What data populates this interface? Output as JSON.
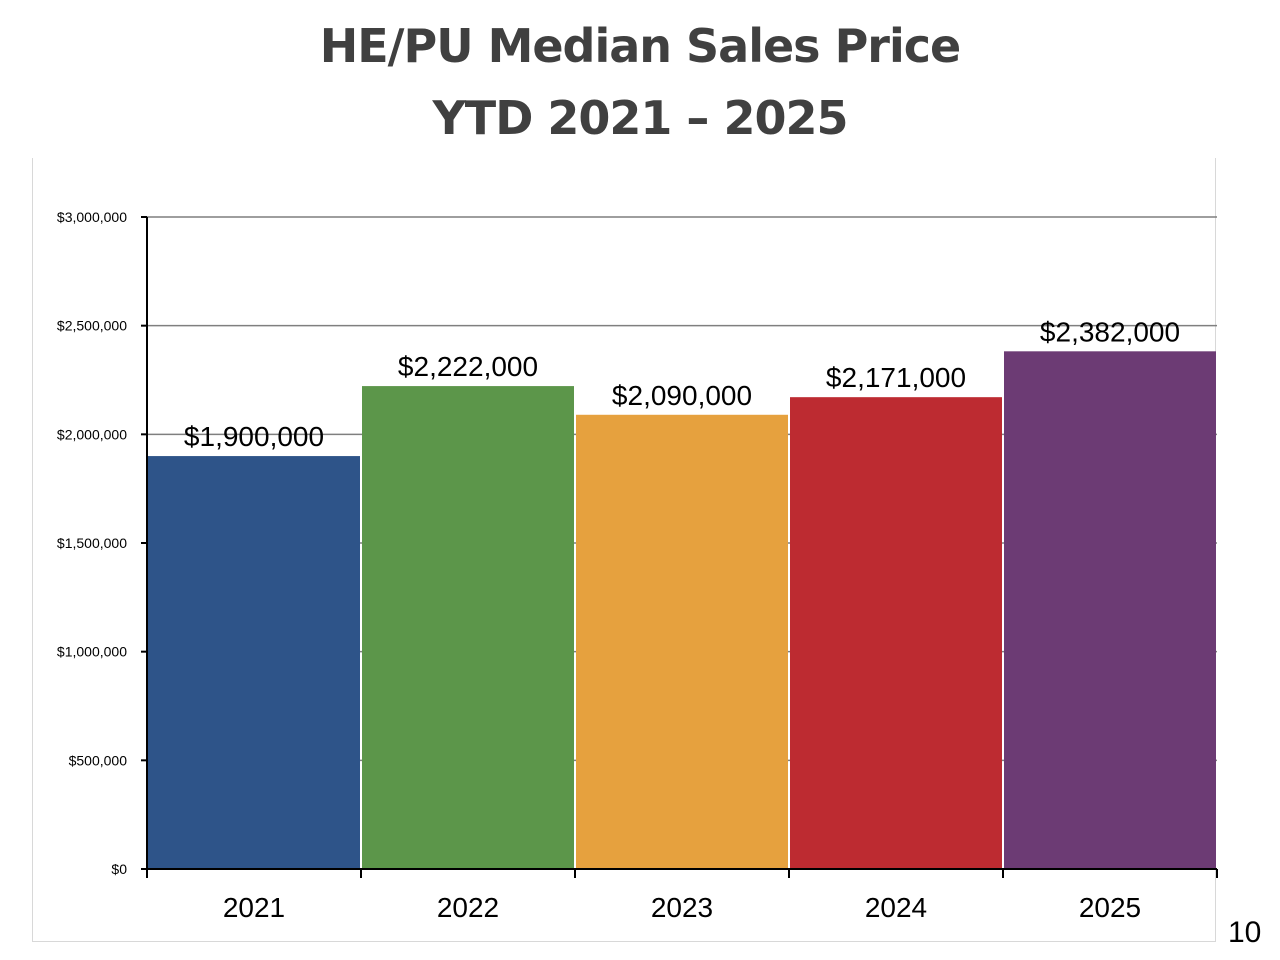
{
  "slide": {
    "title_line1": "HE/PU Median Sales Price",
    "title_line2": "YTD 2021 – 2025",
    "page_number": "10"
  },
  "chart_data": {
    "type": "bar",
    "categories": [
      "2021",
      "2022",
      "2023",
      "2024",
      "2025"
    ],
    "values": [
      1900000,
      2222000,
      2090000,
      2171000,
      2382000
    ],
    "value_labels": [
      "$1,900,000",
      "$2,222,000",
      "$2,090,000",
      "$2,171,000",
      "$2,382,000"
    ],
    "colors": [
      "#2e5489",
      "#5c964a",
      "#e6a13e",
      "#bd2b31",
      "#6c3b74"
    ],
    "ylim": [
      0,
      3000000
    ],
    "yticks": [
      0,
      500000,
      1000000,
      1500000,
      2000000,
      2500000,
      3000000
    ],
    "ytick_labels": [
      "$0",
      "$500,000",
      "$1,000,000",
      "$1,500,000",
      "$2,000,000",
      "$2,500,000",
      "$3,000,000"
    ],
    "grid": true,
    "legend": "none",
    "gridline_color": "#7f7f7f"
  }
}
